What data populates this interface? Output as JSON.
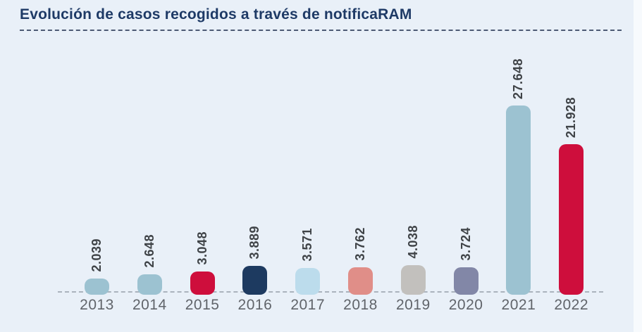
{
  "page": {
    "background_color": "#e9f0f8"
  },
  "header": {
    "title": "Evolución de casos recogidos a través de notificaRAM",
    "title_color": "#1e3a66"
  },
  "chart_data": {
    "type": "bar",
    "title": "Evolución de casos recogidos a través de notificaRAM",
    "categories": [
      "2013",
      "2014",
      "2015",
      "2016",
      "2017",
      "2018",
      "2019",
      "2020",
      "2021",
      "2022"
    ],
    "values": [
      2039,
      2648,
      3048,
      3889,
      3571,
      3762,
      4038,
      3724,
      27648,
      21928
    ],
    "value_labels": [
      "2.039",
      "2.648",
      "3.048",
      "3.889",
      "3.571",
      "3.762",
      "4.038",
      "3.724",
      "27.648",
      "21.928"
    ],
    "bar_colors": [
      "#9cc2d1",
      "#9cc2d1",
      "#ce0e3c",
      "#1d3a60",
      "#bcdcec",
      "#e08e88",
      "#c2c0bd",
      "#8287a7",
      "#9cc2d1",
      "#ce0e3c"
    ],
    "xlabel": "",
    "ylabel": "",
    "ylim": [
      0,
      28000
    ],
    "grid": false,
    "legend": false,
    "baseline_style": "dashed",
    "value_label_rotation": "vertical-bottom-to-top",
    "value_label_color": "#3f4347",
    "category_label_color": "#60646a"
  }
}
